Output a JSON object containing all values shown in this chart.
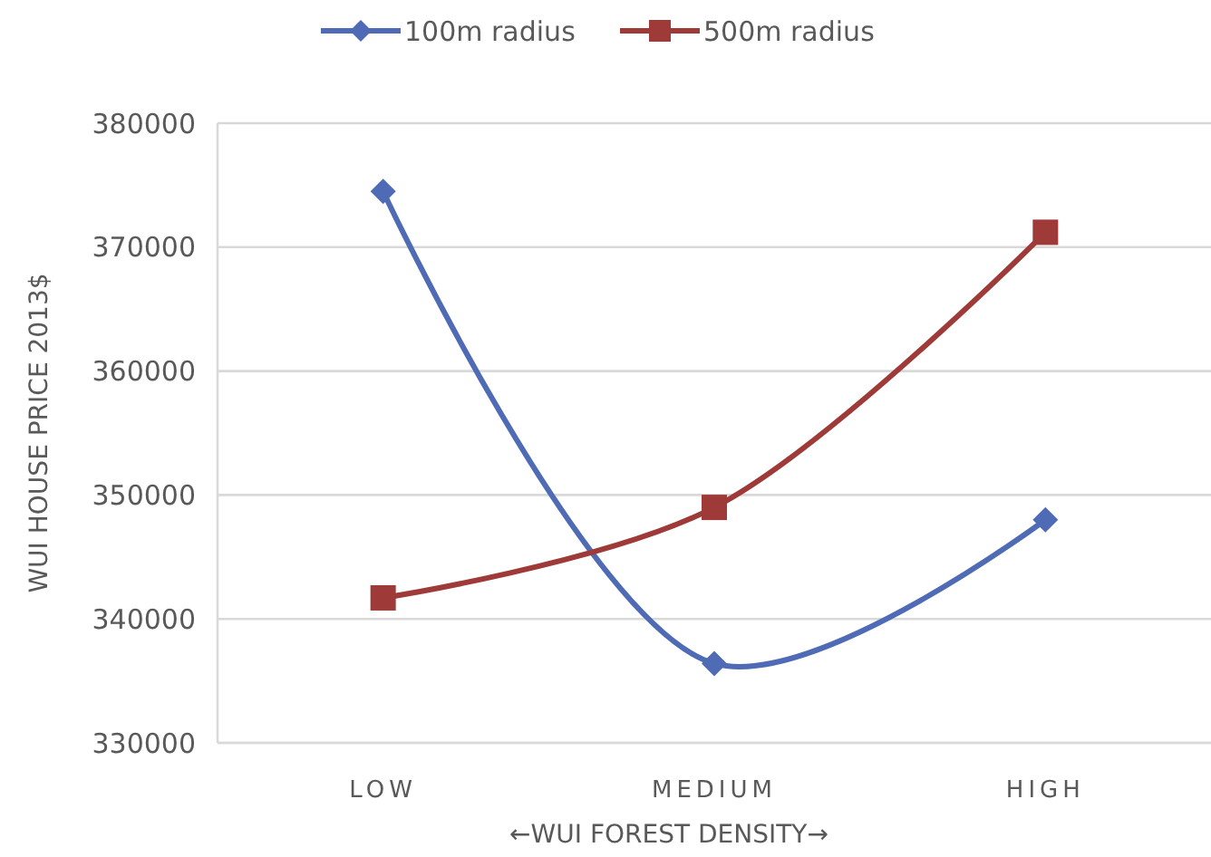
{
  "chart_data": {
    "type": "line",
    "xlabel": "←WUI FOREST DENSITY→",
    "ylabel": "WUI HOUSE PRICE 2013$",
    "categories": [
      "LOW",
      "MEDIUM",
      "HIGH"
    ],
    "series": [
      {
        "name": "100m radius",
        "color": "#4f6bb5",
        "values": [
          374500,
          336400,
          348000
        ],
        "marker": "diamond"
      },
      {
        "name": "500m radius",
        "color": "#9e3b38",
        "values": [
          341700,
          349000,
          371200
        ],
        "marker": "square"
      }
    ],
    "ylim": [
      330000,
      380000
    ],
    "yticks": [
      330000,
      340000,
      350000,
      360000,
      370000,
      380000
    ],
    "grid": "y",
    "legend": "top",
    "line_style": "solid"
  }
}
